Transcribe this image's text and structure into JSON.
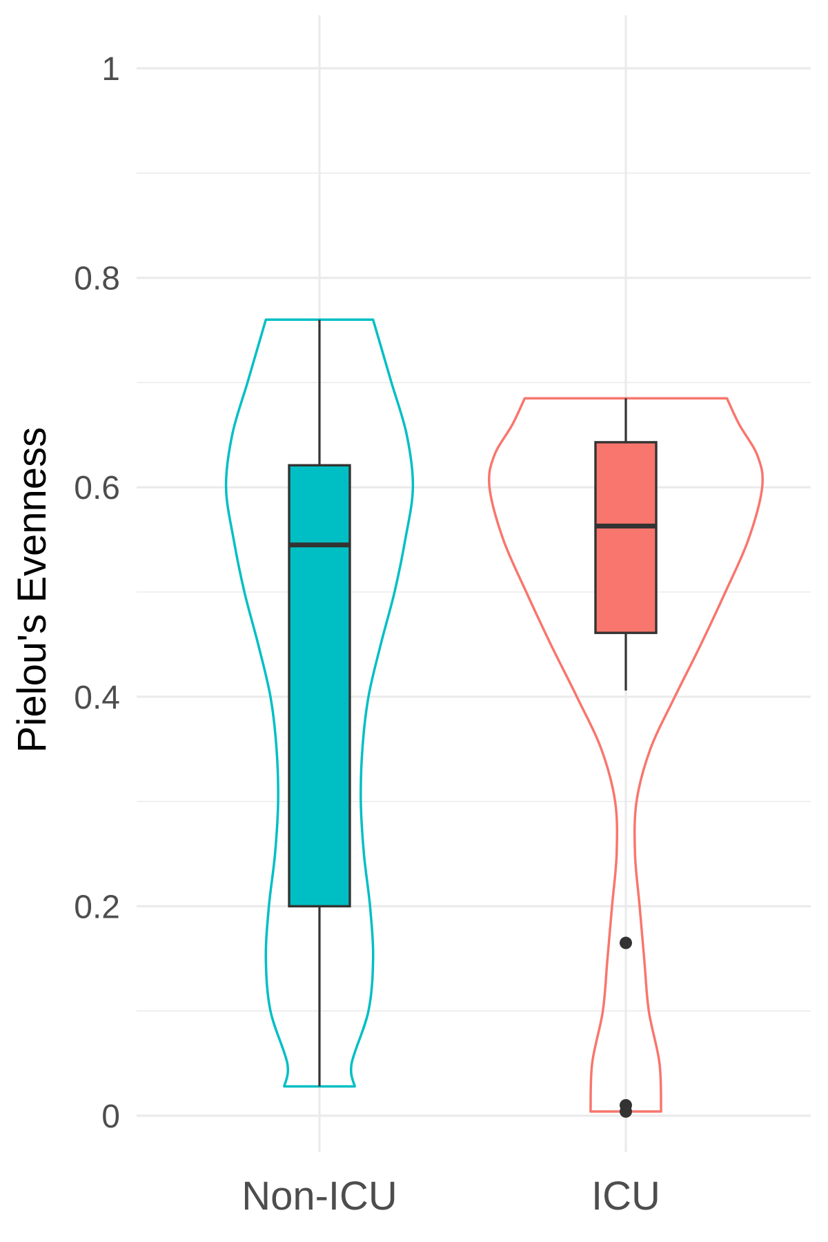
{
  "chart_data": {
    "type": "violin",
    "ylabel": "Pielou's Evenness",
    "xlabel": "",
    "ylim": [
      -0.05,
      1.05
    ],
    "y_ticks": [
      0,
      0.2,
      0.4,
      0.6,
      0.8,
      1
    ],
    "y_tick_labels": [
      "0",
      "0.2",
      "0.4",
      "0.6",
      "0.8",
      "1"
    ],
    "grid": true,
    "legend": "none",
    "categories": [
      "Non-ICU",
      "ICU"
    ],
    "series": [
      {
        "category": "Non-ICU",
        "color": "#00BFC4",
        "box": {
          "min": 0.028,
          "q1": 0.2,
          "median": 0.545,
          "q3": 0.621,
          "max": 0.76
        },
        "outliers": [],
        "violin_half_width": [
          [
            0.028,
            0.115
          ],
          [
            0.05,
            0.105
          ],
          [
            0.1,
            0.16
          ],
          [
            0.15,
            0.175
          ],
          [
            0.2,
            0.165
          ],
          [
            0.25,
            0.145
          ],
          [
            0.3,
            0.135
          ],
          [
            0.35,
            0.14
          ],
          [
            0.4,
            0.16
          ],
          [
            0.45,
            0.2
          ],
          [
            0.5,
            0.245
          ],
          [
            0.55,
            0.28
          ],
          [
            0.6,
            0.305
          ],
          [
            0.65,
            0.285
          ],
          [
            0.7,
            0.235
          ],
          [
            0.74,
            0.195
          ],
          [
            0.76,
            0.175
          ]
        ]
      },
      {
        "category": "ICU",
        "color": "#F8766D",
        "box": {
          "min": 0.406,
          "q1": 0.461,
          "median": 0.563,
          "q3": 0.643,
          "max": 0.685
        },
        "outliers": [
          0.165,
          0.01,
          0.004
        ],
        "violin_half_width": [
          [
            0.004,
            0.115
          ],
          [
            0.05,
            0.11
          ],
          [
            0.1,
            0.075
          ],
          [
            0.15,
            0.06
          ],
          [
            0.2,
            0.045
          ],
          [
            0.25,
            0.03
          ],
          [
            0.3,
            0.035
          ],
          [
            0.35,
            0.08
          ],
          [
            0.4,
            0.16
          ],
          [
            0.45,
            0.245
          ],
          [
            0.5,
            0.325
          ],
          [
            0.55,
            0.4
          ],
          [
            0.6,
            0.445
          ],
          [
            0.63,
            0.43
          ],
          [
            0.66,
            0.37
          ],
          [
            0.685,
            0.33
          ]
        ]
      }
    ]
  }
}
